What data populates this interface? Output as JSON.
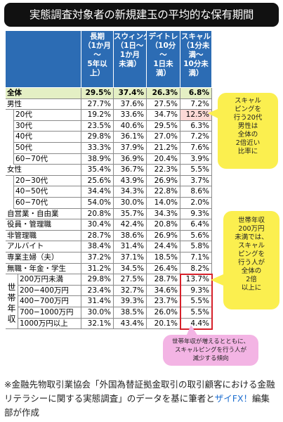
{
  "title": "実態調査対象者の新規建玉の平均的な保有期間",
  "table": {
    "columns": [
      [
        "長期",
        "（1か月",
        "～",
        "5年以",
        "上）"
      ],
      [
        "スウィング",
        "（1日～",
        "1か月",
        "未満）"
      ],
      [
        "デイトレ",
        "（10分",
        "～",
        "1日未",
        "満）"
      ],
      [
        "スキャル",
        "（1分未",
        "満～",
        "10分未",
        "満）"
      ]
    ],
    "rows": [
      {
        "label": "全体",
        "values": [
          "29.5%",
          "37.4%",
          "26.3%",
          "6.8%"
        ]
      },
      {
        "label": "男性",
        "values": [
          "27.7%",
          "37.6%",
          "27.5%",
          "7.2%"
        ],
        "children": [
          {
            "label": "20代",
            "values": [
              "19.2%",
              "33.6%",
              "34.7%",
              "12.5%"
            ]
          },
          {
            "label": "30代",
            "values": [
              "23.5%",
              "40.6%",
              "29.5%",
              "6.3%"
            ]
          },
          {
            "label": "40代",
            "values": [
              "29.8%",
              "36.1%",
              "27.0%",
              "7.2%"
            ]
          },
          {
            "label": "50代",
            "values": [
              "33.3%",
              "37.9%",
              "21.2%",
              "7.6%"
            ]
          },
          {
            "label": "60−70代",
            "values": [
              "38.9%",
              "36.9%",
              "20.4%",
              "3.9%"
            ]
          }
        ]
      },
      {
        "label": "女性",
        "values": [
          "35.4%",
          "36.7%",
          "22.3%",
          "5.5%"
        ],
        "children": [
          {
            "label": "20−30代",
            "values": [
              "25.6%",
              "43.9%",
              "26.9%",
              "3.7%"
            ]
          },
          {
            "label": "40−50代",
            "values": [
              "34.4%",
              "34.3%",
              "22.8%",
              "8.6%"
            ]
          },
          {
            "label": "60−70代",
            "values": [
              "54.0%",
              "30.0%",
              "14.0%",
              "2.0%"
            ]
          }
        ]
      },
      {
        "label": "自営業・自由業",
        "values": [
          "20.8%",
          "35.7%",
          "34.3%",
          "9.3%"
        ]
      },
      {
        "label": "役員・管理職",
        "values": [
          "30.4%",
          "42.4%",
          "20.8%",
          "6.4%"
        ]
      },
      {
        "label": "非管理職",
        "values": [
          "28.7%",
          "38.6%",
          "26.9%",
          "5.6%"
        ]
      },
      {
        "label": "アルバイト",
        "values": [
          "38.4%",
          "31.4%",
          "24.4%",
          "5.8%"
        ]
      },
      {
        "label": "専業主婦（夫）",
        "values": [
          "37.2%",
          "37.1%",
          "18.5%",
          "7.1%"
        ]
      },
      {
        "label": "無職・年金・学生",
        "values": [
          "31.2%",
          "34.5%",
          "26.4%",
          "8.2%"
        ]
      }
    ],
    "income": {
      "label": "世帯年収",
      "rows": [
        {
          "label": "200万円未満",
          "values": [
            "29.8%",
            "27.5%",
            "28.7%",
            "13.7%"
          ]
        },
        {
          "label": "200−400万円",
          "values": [
            "23.4%",
            "32.7%",
            "34.6%",
            "9.3%"
          ]
        },
        {
          "label": "400−700万円",
          "values": [
            "31.4%",
            "39.3%",
            "23.7%",
            "5.5%"
          ]
        },
        {
          "label": "700−1000万円",
          "values": [
            "30.0%",
            "38.5%",
            "26.0%",
            "5.5%"
          ]
        },
        {
          "label": "1000万円以上",
          "values": [
            "32.1%",
            "43.4%",
            "20.1%",
            "4.4%"
          ]
        }
      ]
    }
  },
  "callouts": [
    [
      "スキャル",
      "ピングを",
      "行う20代",
      "男性は",
      "全体の",
      "2倍近い",
      "比率に"
    ],
    [
      "世帯年収",
      "200万円",
      "未満では、",
      "スキャル",
      "ピングを",
      "行う人が",
      "全体の",
      "2倍",
      "以上に"
    ],
    [
      "世帯年収が増えるとともに、",
      "スキャルピングを行う人が",
      "減少する傾向"
    ]
  ],
  "footer": {
    "text": "※金融先物取引業協会「外国為替証拠金取引の取引顧客における金融リテラシーに関する実態調査」のデータを基に筆者と",
    "link": "ザイFX！",
    "tail": "編集部が作成"
  }
}
